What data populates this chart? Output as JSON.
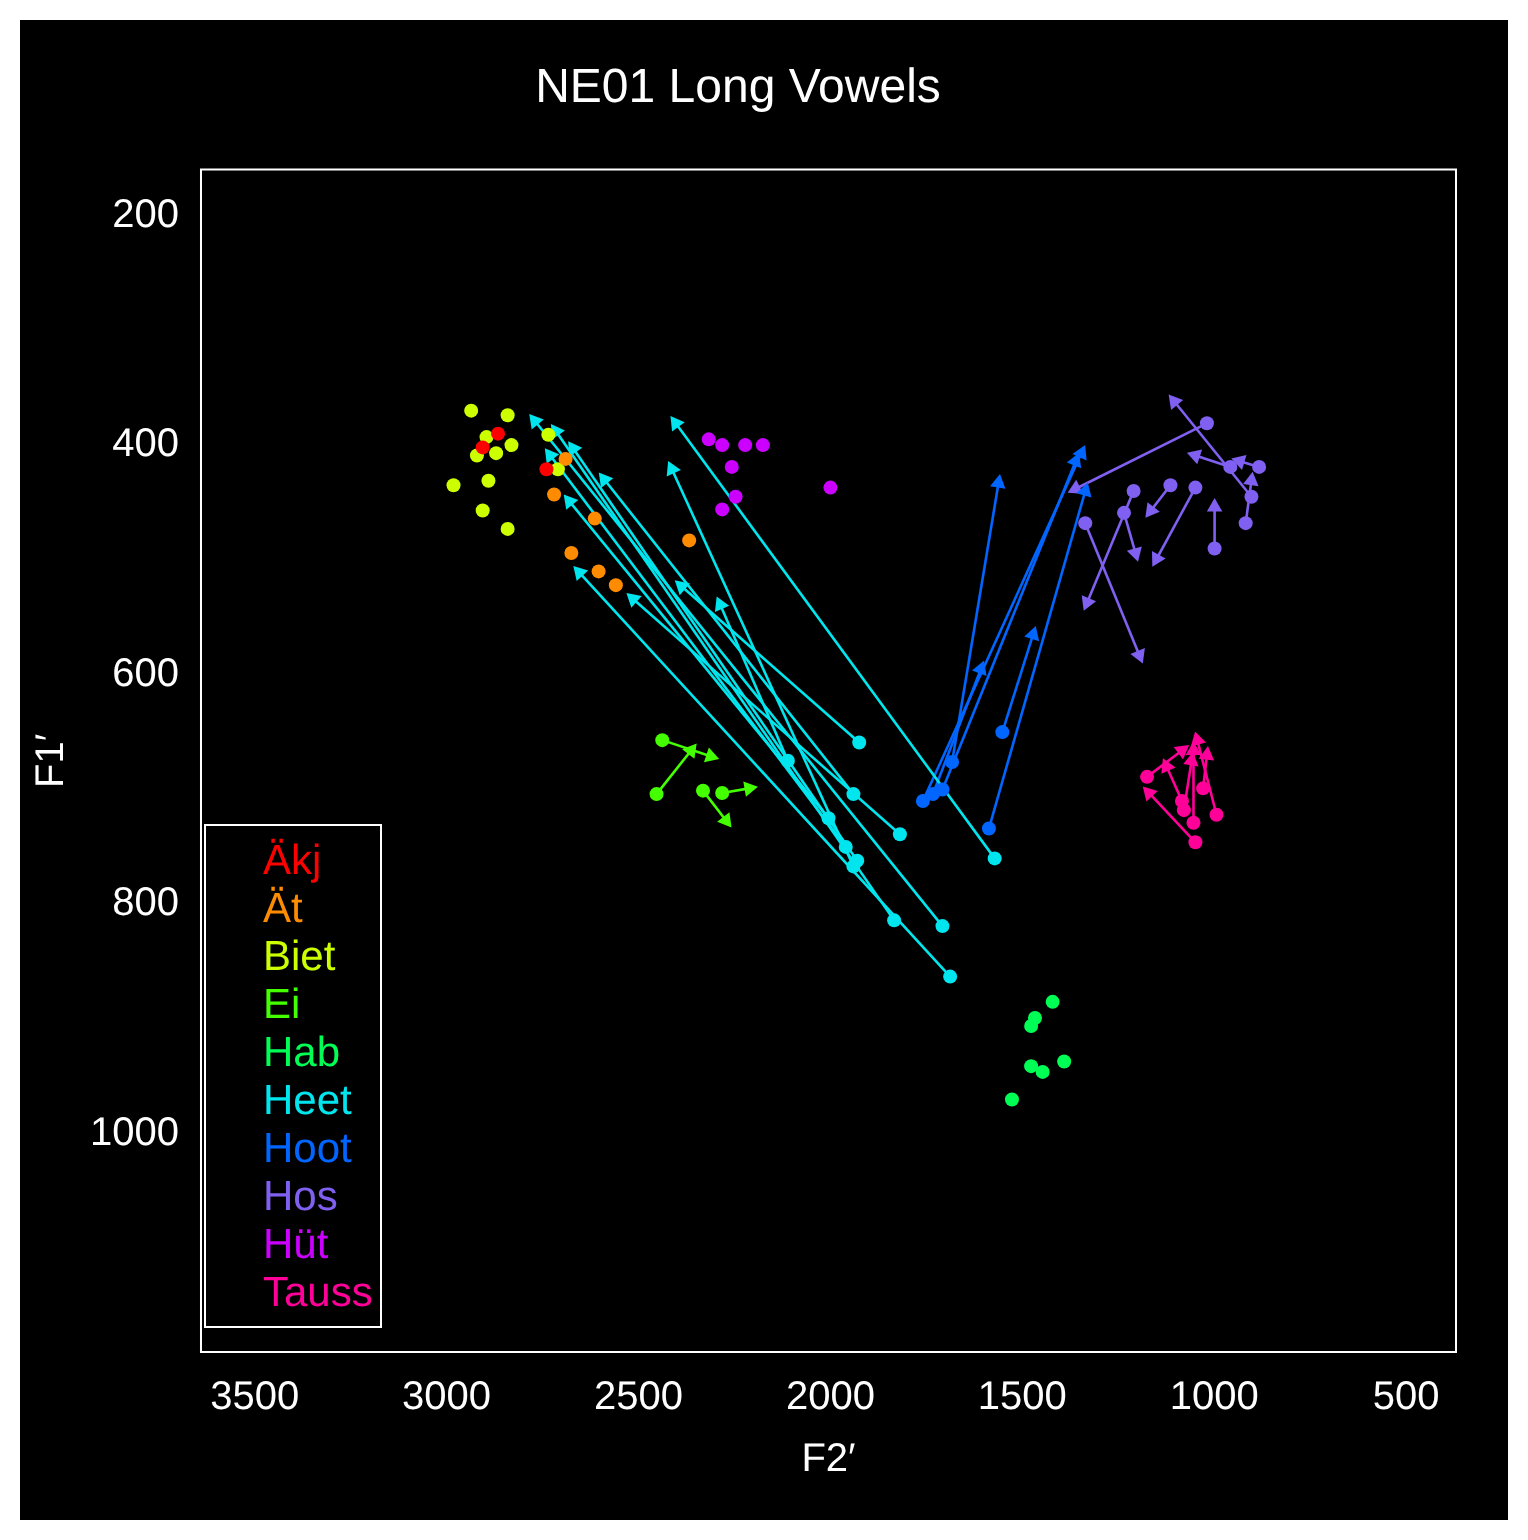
{
  "chart_data": {
    "type": "scatter",
    "title": "NE01 Long Vowels",
    "xlabel": "F2′",
    "ylabel": "F1′",
    "xlim": [
      3640,
      370
    ],
    "xticks": [
      3500,
      3000,
      2500,
      2000,
      1500,
      1000,
      500
    ],
    "ylim": [
      1190,
      160
    ],
    "yticks": [
      200,
      400,
      600,
      800,
      1000
    ],
    "legend": "bottom left",
    "series": [
      {
        "name": "Äkj",
        "color": "#ff0000",
        "type": "scatter",
        "x": [
          2866,
          2740,
          2906
        ],
        "values": [
          390,
          421,
          402
        ]
      },
      {
        "name": "Ät",
        "color": "#ff8c00",
        "type": "scatter",
        "x": [
          2690,
          2720,
          2614,
          2675,
          2604,
          2559,
          2368
        ],
        "values": [
          412,
          443,
          464,
          494,
          510,
          522,
          483
        ]
      },
      {
        "name": "Biet",
        "color": "#ccff00",
        "type": "scatter",
        "x": [
          2936,
          2841,
          2896,
          2831,
          2921,
          2871,
          2891,
          2982,
          2906,
          2841,
          2710,
          2735
        ],
        "values": [
          370,
          374,
          393,
          400,
          409,
          407,
          431,
          435,
          457,
          473,
          421,
          391
        ]
      },
      {
        "name": "Ei",
        "color": "#44ff00",
        "type": "scatter",
        "x": [
          2438,
          2453,
          2332,
          2282
        ],
        "values": [
          657,
          704,
          701,
          703
        ]
      },
      {
        "name": "Hab",
        "color": "#00ff55",
        "type": "scatter",
        "x": [
          1421,
          1467,
          1477,
          1477,
          1447,
          1391,
          1527
        ],
        "values": [
          885,
          899,
          906,
          941,
          946,
          937,
          970
        ]
      },
      {
        "name": "Heet",
        "color": "#00e5ee",
        "type": "scatter",
        "x": [
          1688,
          1708,
          1834,
          1572,
          1819,
          1925,
          1940,
          2005,
          1960,
          1930,
          1940,
          2111
        ],
        "values": [
          863,
          819,
          814,
          760,
          739,
          659,
          704,
          725,
          750,
          762,
          767,
          675
        ]
      },
      {
        "name": "Hoot",
        "color": "#0066ff",
        "type": "scatter",
        "x": [
          1759,
          1708,
          1683,
          1587,
          1552,
          1733
        ],
        "values": [
          710,
          700,
          676,
          734,
          650,
          704
        ]
      },
      {
        "name": "Hos",
        "color": "#8060f0",
        "type": "scatter",
        "x": [
          1019,
          903,
          958,
          883,
          918,
          999,
          1049,
          1114,
          1210,
          1235,
          1336
        ],
        "values": [
          381,
          445,
          419,
          419,
          468,
          490,
          437,
          435,
          440,
          459,
          468
        ]
      },
      {
        "name": "Hüt",
        "color": "#cc00ff",
        "type": "scatter",
        "x": [
          2317,
          2282,
          2222,
          2176,
          2257,
          2247,
          2282,
          2000
        ],
        "values": [
          395,
          400,
          400,
          400,
          419,
          445,
          456,
          437
        ]
      },
      {
        "name": "Tauss",
        "color": "#ff0099",
        "type": "scatter",
        "x": [
          1175,
          1084,
          1049,
          1054,
          994,
          1029,
          1079
        ],
        "values": [
          689,
          710,
          746,
          729,
          722,
          699,
          718
        ]
      },
      {
        "color": "#44ff00",
        "type": "line",
        "x": [
          2438,
          2312
        ],
        "values": [
          657,
          671
        ]
      },
      {
        "color": "#44ff00",
        "type": "line",
        "x": [
          2453,
          2363
        ],
        "values": [
          704,
          666
        ]
      },
      {
        "color": "#44ff00",
        "type": "line",
        "x": [
          2332,
          2272
        ],
        "values": [
          701,
          727
        ]
      },
      {
        "color": "#44ff00",
        "type": "line",
        "x": [
          2282,
          2212
        ],
        "values": [
          703,
          699
        ]
      },
      {
        "color": "#00e5ee",
        "type": "line",
        "x": [
          1688,
          2654
        ],
        "values": [
          863,
          511
        ]
      },
      {
        "color": "#00e5ee",
        "type": "line",
        "x": [
          1708,
          2770
        ],
        "values": [
          819,
          379
        ]
      },
      {
        "color": "#00e5ee",
        "type": "line",
        "x": [
          1834,
          2715
        ],
        "values": [
          814,
          388
        ]
      },
      {
        "color": "#00e5ee",
        "type": "line",
        "x": [
          1572,
          2403
        ],
        "values": [
          760,
          381
        ]
      },
      {
        "color": "#00e5ee",
        "type": "line",
        "x": [
          1819,
          2514
        ],
        "values": [
          739,
          534
        ]
      },
      {
        "color": "#00e5ee",
        "type": "line",
        "x": [
          1925,
          2388
        ],
        "values": [
          659,
          523
        ]
      },
      {
        "color": "#00e5ee",
        "type": "line",
        "x": [
          1940,
          2589
        ],
        "values": [
          704,
          430
        ]
      },
      {
        "color": "#00e5ee",
        "type": "line",
        "x": [
          2005,
          2680
        ],
        "values": [
          725,
          449
        ]
      },
      {
        "color": "#00e5ee",
        "type": "line",
        "x": [
          1960,
          2730
        ],
        "values": [
          750,
          409
        ]
      },
      {
        "color": "#00e5ee",
        "type": "line",
        "x": [
          1930,
          2670
        ],
        "values": [
          762,
          403
        ]
      },
      {
        "color": "#00e5ee",
        "type": "line",
        "x": [
          1940,
          2413
        ],
        "values": [
          767,
          421
        ]
      },
      {
        "color": "#00e5ee",
        "type": "line",
        "x": [
          2111,
          2287
        ],
        "values": [
          675,
          539
        ]
      },
      {
        "color": "#0066ff",
        "type": "line",
        "x": [
          1759,
          1346
        ],
        "values": [
          710,
          407
        ]
      },
      {
        "color": "#0066ff",
        "type": "line",
        "x": [
          1708,
          1361
        ],
        "values": [
          700,
          414
        ]
      },
      {
        "color": "#0066ff",
        "type": "line",
        "x": [
          1683,
          1562
        ],
        "values": [
          676,
          433
        ]
      },
      {
        "color": "#0066ff",
        "type": "line",
        "x": [
          1587,
          1336
        ],
        "values": [
          734,
          440
        ]
      },
      {
        "color": "#0066ff",
        "type": "line",
        "x": [
          1552,
          1472
        ],
        "values": [
          650,
          565
        ]
      },
      {
        "color": "#0066ff",
        "type": "line",
        "x": [
          1733,
          1608
        ],
        "values": [
          704,
          595
        ]
      },
      {
        "color": "#8060f0",
        "type": "line",
        "x": [
          1019,
          1361
        ],
        "values": [
          381,
          438
        ]
      },
      {
        "color": "#8060f0",
        "type": "line",
        "x": [
          903,
          1104
        ],
        "values": [
          445,
          362
        ]
      },
      {
        "color": "#8060f0",
        "type": "line",
        "x": [
          958,
          1049
        ],
        "values": [
          419,
          409
        ]
      },
      {
        "color": "#8060f0",
        "type": "line",
        "x": [
          883,
          933
        ],
        "values": [
          419,
          414
        ]
      },
      {
        "color": "#8060f0",
        "type": "line",
        "x": [
          918,
          903
        ],
        "values": [
          468,
          431
        ]
      },
      {
        "color": "#8060f0",
        "type": "line",
        "x": [
          999,
          999
        ],
        "values": [
          490,
          454
        ]
      },
      {
        "color": "#8060f0",
        "type": "line",
        "x": [
          1049,
          1150
        ],
        "values": [
          437,
          499
        ]
      },
      {
        "color": "#8060f0",
        "type": "line",
        "x": [
          1114,
          1165
        ],
        "values": [
          435,
          457
        ]
      },
      {
        "color": "#8060f0",
        "type": "line",
        "x": [
          1210,
          1331
        ],
        "values": [
          440,
          537
        ]
      },
      {
        "color": "#8060f0",
        "type": "line",
        "x": [
          1235,
          1205
        ],
        "values": [
          459,
          494
        ]
      },
      {
        "color": "#8060f0",
        "type": "line",
        "x": [
          1336,
          1195
        ],
        "values": [
          468,
          583
        ]
      },
      {
        "color": "#ff0099",
        "type": "line",
        "x": [
          1175,
          1084
        ],
        "values": [
          689,
          666
        ]
      },
      {
        "color": "#ff0099",
        "type": "line",
        "x": [
          1084,
          1124
        ],
        "values": [
          710,
          680
        ]
      },
      {
        "color": "#ff0099",
        "type": "line",
        "x": [
          1049,
          1170
        ],
        "values": [
          746,
          703
        ]
      },
      {
        "color": "#ff0099",
        "type": "line",
        "x": [
          1054,
          1054
        ],
        "values": [
          729,
          666
        ]
      },
      {
        "color": "#ff0099",
        "type": "line",
        "x": [
          994,
          1044
        ],
        "values": [
          722,
          657
        ]
      },
      {
        "color": "#ff0099",
        "type": "line",
        "x": [
          1029,
          1019
        ],
        "values": [
          699,
          670
        ]
      },
      {
        "color": "#ff0099",
        "type": "line",
        "x": [
          1079,
          1059
        ],
        "values": [
          718,
          675
        ]
      }
    ]
  }
}
